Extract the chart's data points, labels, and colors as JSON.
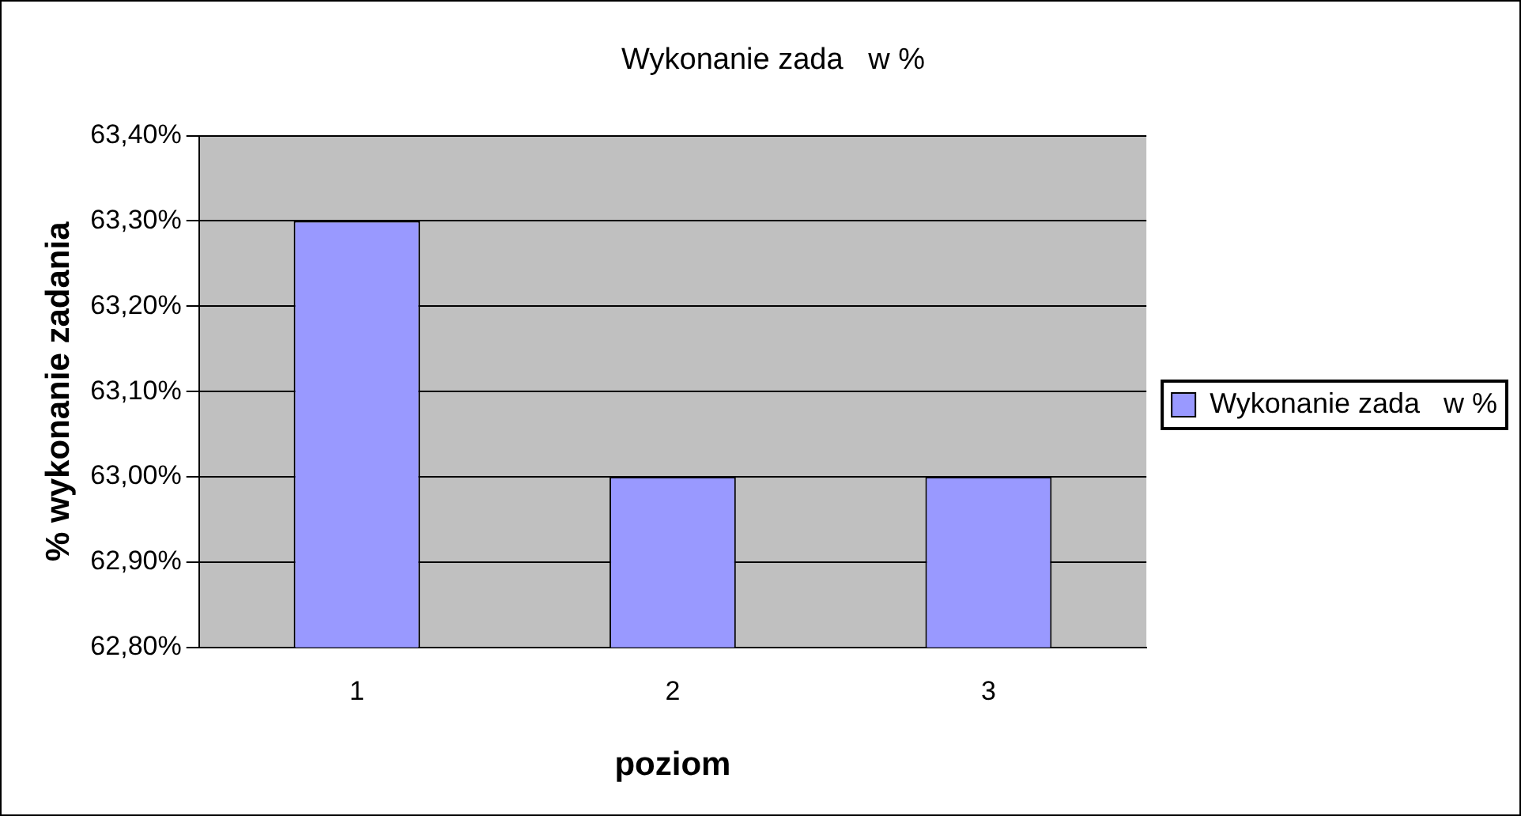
{
  "chart_data": {
    "type": "bar",
    "title": "Wykonanie zada   w %",
    "xlabel": "poziom",
    "ylabel": "% wykonanie zadania",
    "categories": [
      "1",
      "2",
      "3"
    ],
    "series": [
      {
        "name": "Wykonanie zada   w %",
        "color": "#9999ff",
        "values": [
          63.3,
          63.0,
          63.0
        ]
      }
    ],
    "ylim": [
      62.8,
      63.4
    ],
    "yticks": [
      {
        "value": 62.8,
        "label": "62,80%"
      },
      {
        "value": 62.9,
        "label": "62,90%"
      },
      {
        "value": 63.0,
        "label": "63,00%"
      },
      {
        "value": 63.1,
        "label": "63,10%"
      },
      {
        "value": 63.2,
        "label": "63,20%"
      },
      {
        "value": 63.3,
        "label": "63,30%"
      },
      {
        "value": 63.4,
        "label": "63,40%"
      }
    ],
    "grid": "y",
    "legend": "right"
  }
}
